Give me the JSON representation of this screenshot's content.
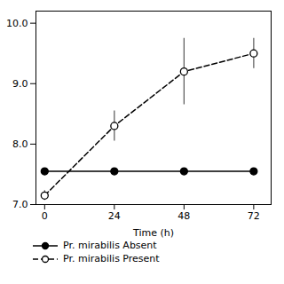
{
  "chart_data": {
    "type": "line",
    "xlabel": "Time (h)",
    "x": [
      0,
      24,
      48,
      72
    ],
    "xlim": [
      -3,
      78
    ],
    "xticks": [
      0,
      24,
      48,
      72
    ],
    "ylim": [
      7.0,
      10.2
    ],
    "yticks": [
      7,
      8,
      9,
      10
    ],
    "legend": "bottom",
    "series": [
      {
        "name": "Pr. mirabilis Absent",
        "color": "#000000",
        "marker": "filled_circle",
        "line_style": "solid",
        "values": [
          7.55,
          7.55,
          7.55,
          7.55
        ],
        "yerr": [
          0.05,
          0.0,
          0.0,
          0.0
        ]
      },
      {
        "name": "Pr. mirabilis Present",
        "color": "#000000",
        "marker": "open_circle",
        "line_style": "dashed",
        "values": [
          7.15,
          8.3,
          9.2,
          9.5
        ],
        "yerr": [
          0.08,
          0.25,
          0.55,
          0.25
        ]
      }
    ]
  }
}
